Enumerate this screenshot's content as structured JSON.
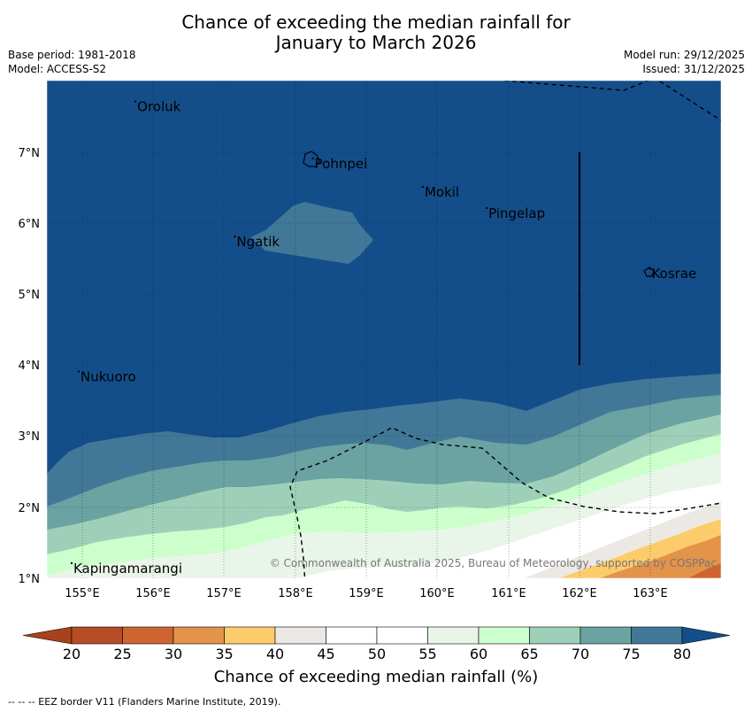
{
  "title_line1": "Chance of exceeding the median rainfall for",
  "title_line2": "January to March 2026",
  "base_period": "Base period: 1981-2018",
  "model": "Model: ACCESS-S2",
  "model_run": "Model run: 29/12/2025",
  "issued": "Issued: 31/12/2025",
  "copyright": "© Commonwealth of Australia 2025, Bureau of Meteorology, supported by COSPPac",
  "lon_labels": [
    "155°E",
    "156°E",
    "157°E",
    "158°E",
    "159°E",
    "160°E",
    "161°E",
    "162°E",
    "163°E"
  ],
  "lat_labels": [
    "1°N",
    "2°N",
    "3°N",
    "4°N",
    "5°N",
    "6°N",
    "7°N"
  ],
  "places": [
    {
      "name": "Oroluk",
      "lon": 155.75,
      "lat": 7.65
    },
    {
      "name": "Pohnpei",
      "lon": 158.25,
      "lat": 6.85
    },
    {
      "name": "Mokil",
      "lon": 159.8,
      "lat": 6.45
    },
    {
      "name": "Pingelap",
      "lon": 160.7,
      "lat": 6.15
    },
    {
      "name": "Ngatik",
      "lon": 157.15,
      "lat": 5.75
    },
    {
      "name": "Kosrae",
      "lon": 163.0,
      "lat": 5.3
    },
    {
      "name": "Nukuoro",
      "lon": 154.95,
      "lat": 3.85
    },
    {
      "name": "Kapingamarangi",
      "lon": 154.85,
      "lat": 1.15
    }
  ],
  "colorbar": {
    "label": "Chance of exceeding median rainfall (%)",
    "ticks": [
      "20",
      "25",
      "30",
      "35",
      "40",
      "45",
      "50",
      "55",
      "60",
      "65",
      "70",
      "75",
      "80"
    ],
    "colors": [
      "#b64c26",
      "#ce6530",
      "#e3934a",
      "#fdcc6a",
      "#ece9e5",
      "#ffffff",
      "#ffffff",
      "#eaf5ea",
      "#ccffcc",
      "#9ed0b9",
      "#6ba2a2",
      "#427897"
    ],
    "below_color": "#a8421c",
    "above_color": "#144e8a"
  },
  "footer": "--  --  -- EEZ border V11 (Flanders Marine Institute, 2019)."
}
